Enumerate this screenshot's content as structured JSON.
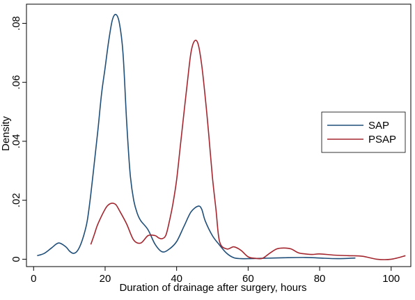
{
  "chart_data": {
    "type": "line",
    "xlabel": "Duration of drainage after surgery, hours",
    "ylabel": "Density",
    "xlim": [
      -2,
      105.5
    ],
    "ylim": [
      -0.0025,
      0.0865
    ],
    "xticks": [
      0,
      20,
      40,
      60,
      80,
      100
    ],
    "xtick_labels": [
      "0",
      "20",
      "40",
      "60",
      "80",
      "100"
    ],
    "yticks": [
      0,
      0.02,
      0.04,
      0.06,
      0.08
    ],
    "ytick_labels": [
      "0",
      ".02",
      ".04",
      ".06",
      ".08"
    ],
    "grid": false,
    "legend_position": "right",
    "series": [
      {
        "name": "SAP",
        "color": "#1f4e79",
        "x": [
          1,
          3,
          5,
          7,
          9,
          10,
          11,
          12,
          13,
          14,
          15,
          16,
          17,
          18,
          19,
          20,
          21,
          22,
          23,
          24,
          25,
          26,
          27,
          28,
          29,
          30,
          32,
          34,
          36,
          38,
          40,
          42,
          44,
          46,
          47,
          48,
          50,
          52,
          54,
          56,
          58,
          60,
          64,
          70,
          76,
          80,
          85,
          90
        ],
        "y": [
          0.0012,
          0.002,
          0.0038,
          0.0055,
          0.0042,
          0.0028,
          0.002,
          0.0025,
          0.0045,
          0.008,
          0.013,
          0.022,
          0.033,
          0.044,
          0.056,
          0.065,
          0.074,
          0.081,
          0.083,
          0.08,
          0.07,
          0.047,
          0.029,
          0.02,
          0.0155,
          0.013,
          0.01,
          0.005,
          0.0025,
          0.0035,
          0.006,
          0.011,
          0.016,
          0.018,
          0.017,
          0.013,
          0.008,
          0.0048,
          0.002,
          0.0005,
          0.0002,
          0.0002,
          0.0003,
          0.0005,
          0.0006,
          0.0004,
          0.0002,
          0.0004
        ]
      },
      {
        "name": "PSAP",
        "color": "#a3262f",
        "x": [
          16,
          17,
          18,
          20,
          21,
          22,
          23,
          24,
          26,
          28,
          30,
          32,
          34,
          35,
          36,
          37,
          38,
          39,
          40,
          41,
          42,
          43,
          44,
          45,
          46,
          47,
          48,
          49,
          50,
          51,
          52,
          54,
          56,
          58,
          60,
          62,
          64,
          66,
          68,
          70,
          72,
          74,
          76,
          78,
          80,
          84,
          88,
          92,
          96,
          100,
          104
        ],
        "y": [
          0.005,
          0.0085,
          0.012,
          0.017,
          0.0185,
          0.019,
          0.0185,
          0.0165,
          0.012,
          0.0065,
          0.0055,
          0.008,
          0.008,
          0.0072,
          0.007,
          0.0082,
          0.013,
          0.019,
          0.027,
          0.038,
          0.049,
          0.06,
          0.07,
          0.074,
          0.073,
          0.066,
          0.055,
          0.042,
          0.028,
          0.017,
          0.006,
          0.0035,
          0.0042,
          0.003,
          0.0008,
          0.0003,
          0.0003,
          0.002,
          0.0035,
          0.0038,
          0.0035,
          0.0022,
          0.0018,
          0.0016,
          0.0018,
          0.0014,
          0.0012,
          0.001,
          0.0,
          0.0,
          0.0012
        ]
      }
    ]
  }
}
